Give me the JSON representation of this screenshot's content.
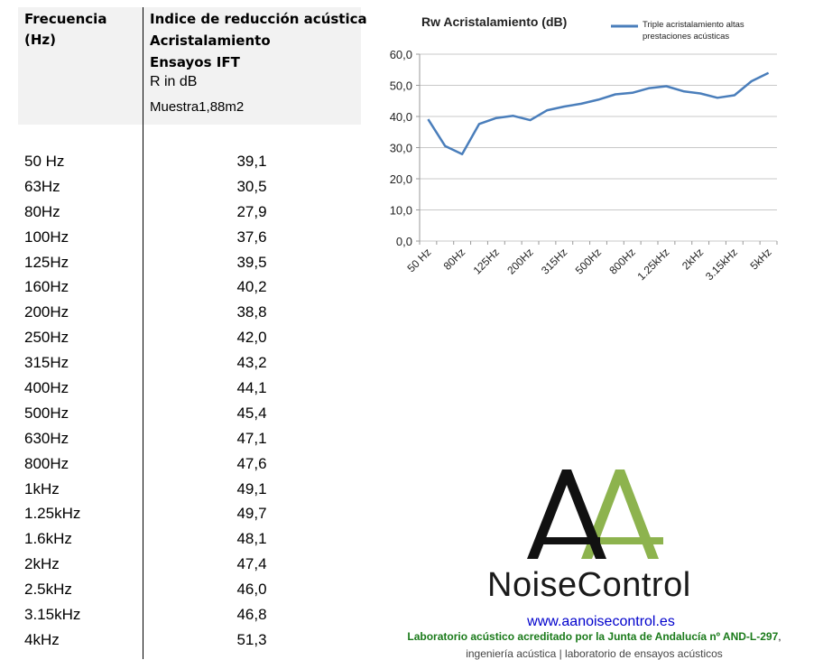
{
  "table": {
    "col1_header": [
      "Frecuencia",
      "(Hz)"
    ],
    "col2_header_bold": [
      "Indice de reducción acústica",
      "Acristalamiento",
      "Ensayos IFT"
    ],
    "col2_header_plain": [
      "R in dB",
      "Muestra1,88m2"
    ],
    "rows": [
      {
        "freq": "50 Hz",
        "value": "39,1"
      },
      {
        "freq": "63Hz",
        "value": "30,5"
      },
      {
        "freq": "80Hz",
        "value": "27,9"
      },
      {
        "freq": "100Hz",
        "value": "37,6"
      },
      {
        "freq": "125Hz",
        "value": "39,5"
      },
      {
        "freq": "160Hz",
        "value": "40,2"
      },
      {
        "freq": "200Hz",
        "value": "38,8"
      },
      {
        "freq": "250Hz",
        "value": "42,0"
      },
      {
        "freq": "315Hz",
        "value": "43,2"
      },
      {
        "freq": "400Hz",
        "value": "44,1"
      },
      {
        "freq": "500Hz",
        "value": "45,4"
      },
      {
        "freq": "630Hz",
        "value": "47,1"
      },
      {
        "freq": "800Hz",
        "value": "47,6"
      },
      {
        "freq": "1kHz",
        "value": "49,1"
      },
      {
        "freq": "1.25kHz",
        "value": "49,7"
      },
      {
        "freq": "1.6kHz",
        "value": "48,1"
      },
      {
        "freq": "2kHz",
        "value": "47,4"
      },
      {
        "freq": "2.5kHz",
        "value": "46,0"
      },
      {
        "freq": "3.15kHz",
        "value": "46,8"
      },
      {
        "freq": "4kHz",
        "value": "51,3"
      }
    ]
  },
  "chart_data": {
    "type": "line",
    "title": "Rw Acristalamiento (dB)",
    "x": [
      "50 Hz",
      "63Hz",
      "80Hz",
      "100Hz",
      "125Hz",
      "160Hz",
      "200Hz",
      "250Hz",
      "315Hz",
      "400Hz",
      "500Hz",
      "630Hz",
      "800Hz",
      "1kHz",
      "1.25kHz",
      "1.6kHz",
      "2kHz",
      "2.5kHz",
      "3.15kHz",
      "4kHz",
      "5kHz"
    ],
    "x_tick_labels": [
      "50 Hz",
      "80Hz",
      "125Hz",
      "200Hz",
      "315Hz",
      "500Hz",
      "800Hz",
      "1.25kHz",
      "2kHz",
      "3.15kHz",
      "5kHz"
    ],
    "series": [
      {
        "name": "Triple acristalamiento altas prestaciones acústicas",
        "color": "#4a7ebb",
        "values": [
          39.1,
          30.5,
          27.9,
          37.6,
          39.5,
          40.2,
          38.8,
          42.0,
          43.2,
          44.1,
          45.4,
          47.1,
          47.6,
          49.1,
          49.7,
          48.1,
          47.4,
          46.0,
          46.8,
          51.3,
          54.0
        ]
      }
    ],
    "y_ticks": [
      "0,0",
      "10,0",
      "20,0",
      "30,0",
      "40,0",
      "50,0",
      "60,0"
    ],
    "ylim": [
      0,
      60
    ],
    "grid": "horizontal",
    "legend_position": "top-right"
  },
  "logo": {
    "name": "NoiseControl",
    "dark_color": "#111111",
    "green_color": "#8db34e"
  },
  "footer": {
    "website": "www.aanoisecontrol.es",
    "lab_line": "Laboratorio acústico acreditado por la Junta de Andalucía nº AND-L-297",
    "lab_line_suffix": ",",
    "sub_line": "ingeniería acústica | laboratorio de ensayos acústicos"
  }
}
